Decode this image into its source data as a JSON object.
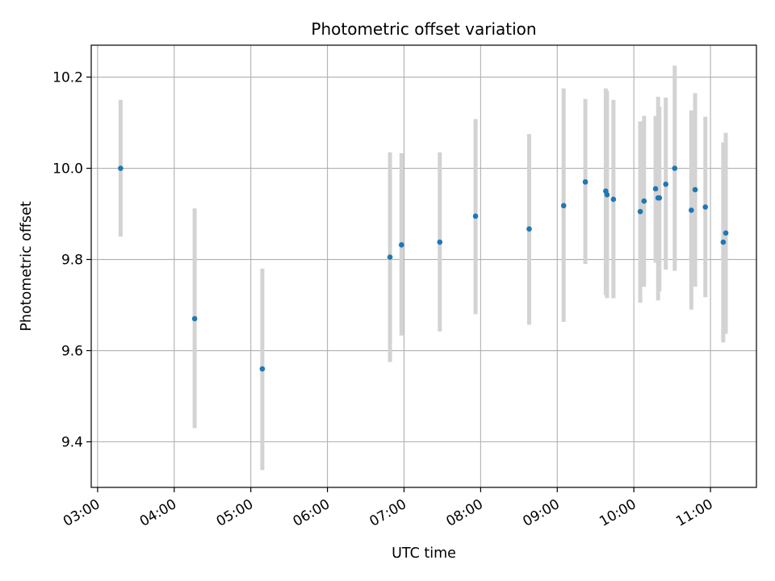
{
  "chart_data": {
    "type": "scatter",
    "title": "Photometric offset variation",
    "xlabel": "UTC time",
    "ylabel": "Photometric offset",
    "x_axis": {
      "unit": "hours UTC",
      "range": [
        "02:55",
        "11:36"
      ],
      "ticks": [
        "03:00",
        "04:00",
        "05:00",
        "06:00",
        "07:00",
        "08:00",
        "09:00",
        "10:00",
        "11:00"
      ],
      "tick_label_rotation_deg": 30
    },
    "y_axis": {
      "range": [
        9.3,
        10.27
      ],
      "ticks": [
        "9.4",
        "9.6",
        "9.8",
        "10.0",
        "10.2"
      ]
    },
    "grid": true,
    "colors": {
      "point": "#1f77b4",
      "errorbar": "#d3d3d3"
    },
    "points": [
      {
        "time": "03:18",
        "value": 10.0,
        "err_low": 9.85,
        "err_high": 10.15
      },
      {
        "time": "04:16",
        "value": 9.67,
        "err_low": 9.43,
        "err_high": 9.912
      },
      {
        "time": "05:09",
        "value": 9.56,
        "err_low": 9.338,
        "err_high": 9.78
      },
      {
        "time": "06:49",
        "value": 9.805,
        "err_low": 9.575,
        "err_high": 10.035
      },
      {
        "time": "06:58",
        "value": 9.832,
        "err_low": 9.633,
        "err_high": 10.033
      },
      {
        "time": "07:28",
        "value": 9.838,
        "err_low": 9.642,
        "err_high": 10.035
      },
      {
        "time": "07:56",
        "value": 9.895,
        "err_low": 9.68,
        "err_high": 10.108
      },
      {
        "time": "08:38",
        "value": 9.867,
        "err_low": 9.657,
        "err_high": 10.075
      },
      {
        "time": "09:05",
        "value": 9.918,
        "err_low": 9.663,
        "err_high": 10.175
      },
      {
        "time": "09:22",
        "value": 9.97,
        "err_low": 9.79,
        "err_high": 10.152
      },
      {
        "time": "09:38",
        "value": 9.95,
        "err_low": 9.722,
        "err_high": 10.175
      },
      {
        "time": "09:39",
        "value": 9.942,
        "err_low": 9.715,
        "err_high": 10.17
      },
      {
        "time": "09:44",
        "value": 9.932,
        "err_low": 9.715,
        "err_high": 10.15
      },
      {
        "time": "10:05",
        "value": 9.905,
        "err_low": 9.705,
        "err_high": 10.103
      },
      {
        "time": "10:08",
        "value": 9.928,
        "err_low": 9.74,
        "err_high": 10.115
      },
      {
        "time": "10:17",
        "value": 9.955,
        "err_low": 9.793,
        "err_high": 10.115
      },
      {
        "time": "10:19",
        "value": 9.935,
        "err_low": 9.71,
        "err_high": 10.157
      },
      {
        "time": "10:20",
        "value": 9.935,
        "err_low": 9.73,
        "err_high": 10.135
      },
      {
        "time": "10:25",
        "value": 9.965,
        "err_low": 9.778,
        "err_high": 10.155
      },
      {
        "time": "10:32",
        "value": 10.0,
        "err_low": 9.775,
        "err_high": 10.225
      },
      {
        "time": "10:45",
        "value": 9.908,
        "err_low": 9.69,
        "err_high": 10.127
      },
      {
        "time": "10:48",
        "value": 9.953,
        "err_low": 9.74,
        "err_high": 10.165
      },
      {
        "time": "10:56",
        "value": 9.915,
        "err_low": 9.717,
        "err_high": 10.113
      },
      {
        "time": "11:10",
        "value": 9.838,
        "err_low": 9.618,
        "err_high": 10.057
      },
      {
        "time": "11:12",
        "value": 9.858,
        "err_low": 9.637,
        "err_high": 10.078
      }
    ]
  }
}
